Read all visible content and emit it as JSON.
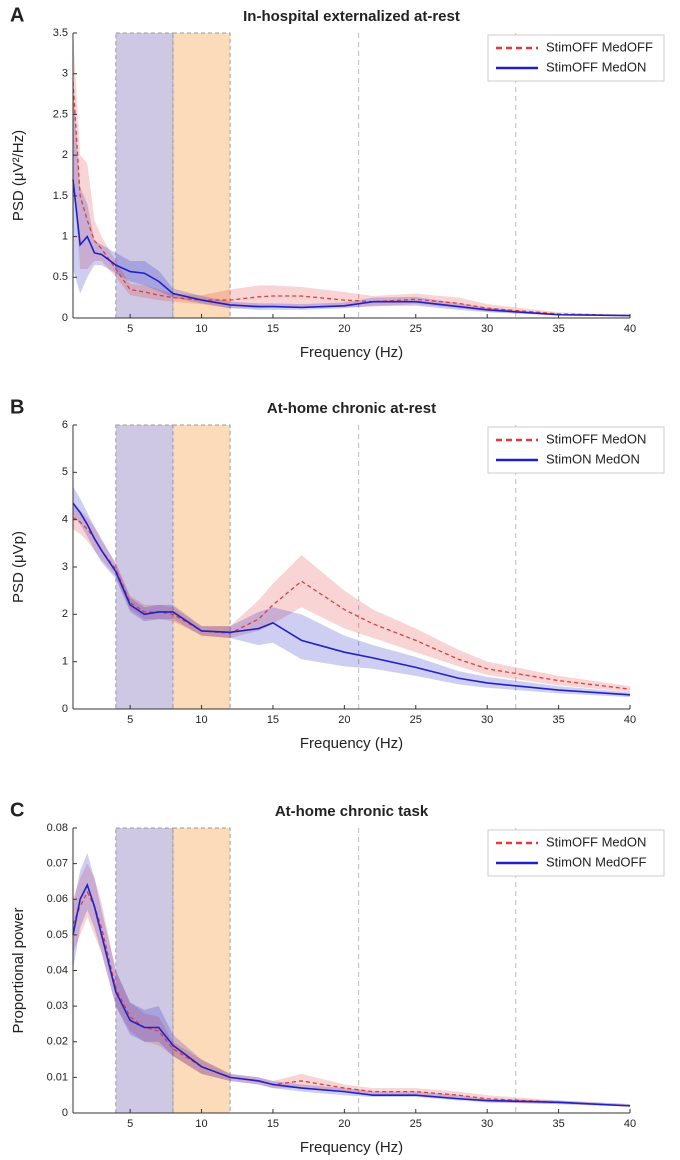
{
  "chart_data": [
    {
      "type": "line",
      "panel_label": "A",
      "title": "In-hospital externalized at-rest",
      "xlabel": "Frequency (Hz)",
      "ylabel": "PSD (μV²/Hz)",
      "x": [
        1,
        1.5,
        2,
        2.5,
        3,
        4,
        5,
        6,
        7,
        8,
        10,
        12,
        14,
        15,
        17,
        20,
        22,
        25,
        28,
        30,
        35,
        40
      ],
      "series": [
        {
          "name": "StimOFF MedOFF",
          "color": "#e03c3c",
          "style": "dashed",
          "values": [
            2.9,
            1.5,
            1.2,
            0.95,
            0.85,
            0.6,
            0.35,
            0.32,
            0.28,
            0.25,
            0.22,
            0.22,
            0.26,
            0.27,
            0.27,
            0.22,
            0.2,
            0.23,
            0.18,
            0.12,
            0.05,
            0.03
          ],
          "lower": [
            1.8,
            0.6,
            0.6,
            0.7,
            0.7,
            0.5,
            0.28,
            0.25,
            0.22,
            0.2,
            0.17,
            0.12,
            0.12,
            0.13,
            0.14,
            0.13,
            0.14,
            0.17,
            0.12,
            0.08,
            0.03,
            0.02
          ],
          "upper": [
            3.5,
            2.0,
            1.9,
            1.2,
            1.0,
            0.7,
            0.42,
            0.4,
            0.35,
            0.3,
            0.28,
            0.35,
            0.4,
            0.4,
            0.38,
            0.32,
            0.27,
            0.3,
            0.25,
            0.17,
            0.07,
            0.04
          ]
        },
        {
          "name": "StimOFF MedON",
          "color": "#2020c8",
          "style": "solid",
          "values": [
            1.7,
            0.9,
            1.0,
            0.8,
            0.78,
            0.65,
            0.57,
            0.55,
            0.45,
            0.3,
            0.22,
            0.16,
            0.14,
            0.14,
            0.13,
            0.15,
            0.2,
            0.2,
            0.14,
            0.1,
            0.04,
            0.03
          ],
          "lower": [
            0.6,
            0.3,
            0.5,
            0.65,
            0.65,
            0.55,
            0.45,
            0.4,
            0.33,
            0.25,
            0.18,
            0.12,
            0.1,
            0.1,
            0.1,
            0.12,
            0.15,
            0.15,
            0.1,
            0.07,
            0.03,
            0.02
          ],
          "upper": [
            2.8,
            1.6,
            1.4,
            0.95,
            0.9,
            0.8,
            0.7,
            0.7,
            0.58,
            0.36,
            0.27,
            0.2,
            0.18,
            0.18,
            0.17,
            0.19,
            0.25,
            0.26,
            0.18,
            0.13,
            0.05,
            0.04
          ]
        }
      ],
      "xlim": [
        1,
        40
      ],
      "ylim": [
        0,
        3.5
      ],
      "xticks": [
        5,
        10,
        15,
        20,
        25,
        30,
        35,
        40
      ],
      "yticks": [
        0,
        0.5,
        1,
        1.5,
        2,
        2.5,
        3,
        3.5
      ],
      "bands": [
        {
          "range": [
            4,
            8
          ],
          "color": "#b3aad6"
        },
        {
          "range": [
            8,
            12
          ],
          "color": "#fbc795"
        }
      ],
      "vlines": [
        21,
        32
      ],
      "legend": "upper right"
    },
    {
      "type": "line",
      "panel_label": "B",
      "title": "At-home chronic at-rest",
      "xlabel": "Frequency (Hz)",
      "ylabel": "PSD (μVp)",
      "x": [
        1,
        1.5,
        2,
        2.5,
        3,
        4,
        5,
        6,
        7,
        8,
        10,
        12,
        14,
        15,
        17,
        20,
        22,
        25,
        28,
        30,
        35,
        40
      ],
      "series": [
        {
          "name": "StimOFF MedON",
          "color": "#e03c3c",
          "style": "dashed",
          "values": [
            4.05,
            3.95,
            3.8,
            3.6,
            3.35,
            2.95,
            2.25,
            2.05,
            2.05,
            2.0,
            1.65,
            1.6,
            1.9,
            2.2,
            2.7,
            2.1,
            1.8,
            1.45,
            1.05,
            0.85,
            0.6,
            0.42
          ],
          "lower": [
            3.8,
            3.7,
            3.55,
            3.35,
            3.15,
            2.8,
            2.1,
            1.9,
            1.9,
            1.85,
            1.55,
            1.5,
            1.65,
            1.8,
            2.15,
            1.7,
            1.5,
            1.2,
            0.9,
            0.72,
            0.5,
            0.36
          ],
          "upper": [
            4.3,
            4.2,
            4.05,
            3.85,
            3.55,
            3.1,
            2.4,
            2.2,
            2.2,
            2.15,
            1.75,
            1.75,
            2.3,
            2.65,
            3.25,
            2.5,
            2.1,
            1.7,
            1.25,
            1.0,
            0.7,
            0.48
          ]
        },
        {
          "name": "StimON MedON",
          "color": "#2020c8",
          "style": "solid",
          "values": [
            4.35,
            4.15,
            3.9,
            3.6,
            3.35,
            2.9,
            2.2,
            2.0,
            2.05,
            2.05,
            1.65,
            1.62,
            1.7,
            1.82,
            1.45,
            1.2,
            1.08,
            0.88,
            0.65,
            0.55,
            0.4,
            0.3
          ],
          "lower": [
            4.1,
            3.9,
            3.65,
            3.35,
            3.1,
            2.75,
            2.05,
            1.85,
            1.9,
            1.9,
            1.55,
            1.5,
            1.35,
            1.4,
            1.05,
            0.9,
            0.85,
            0.7,
            0.52,
            0.45,
            0.33,
            0.25
          ],
          "upper": [
            4.7,
            4.45,
            4.15,
            3.85,
            3.6,
            3.05,
            2.35,
            2.15,
            2.2,
            2.2,
            1.75,
            1.75,
            2.05,
            2.15,
            2.0,
            1.55,
            1.35,
            1.1,
            0.8,
            0.68,
            0.48,
            0.35
          ]
        }
      ],
      "xlim": [
        1,
        40
      ],
      "ylim": [
        0,
        6
      ],
      "xticks": [
        5,
        10,
        15,
        20,
        25,
        30,
        35,
        40
      ],
      "yticks": [
        0,
        1,
        2,
        3,
        4,
        5,
        6
      ],
      "bands": [
        {
          "range": [
            4,
            8
          ],
          "color": "#b3aad6"
        },
        {
          "range": [
            8,
            12
          ],
          "color": "#fbc795"
        }
      ],
      "vlines": [
        21,
        32
      ],
      "legend": "upper right"
    },
    {
      "type": "line",
      "panel_label": "C",
      "title": "At-home chronic task",
      "xlabel": "Frequency (Hz)",
      "ylabel": "Proportional power",
      "x": [
        1,
        1.5,
        2,
        2.5,
        3,
        4,
        5,
        6,
        7,
        8,
        10,
        12,
        14,
        15,
        17,
        20,
        22,
        25,
        28,
        30,
        35,
        40
      ],
      "series": [
        {
          "name": "StimOFF MedON",
          "color": "#e03c3c",
          "style": "dashed",
          "values": [
            0.053,
            0.058,
            0.062,
            0.058,
            0.052,
            0.035,
            0.027,
            0.024,
            0.023,
            0.018,
            0.013,
            0.01,
            0.009,
            0.008,
            0.009,
            0.007,
            0.006,
            0.006,
            0.005,
            0.004,
            0.003,
            0.002
          ],
          "lower": [
            0.045,
            0.05,
            0.055,
            0.05,
            0.045,
            0.03,
            0.023,
            0.02,
            0.019,
            0.016,
            0.011,
            0.009,
            0.008,
            0.007,
            0.007,
            0.006,
            0.005,
            0.005,
            0.004,
            0.003,
            0.0025,
            0.0018
          ],
          "upper": [
            0.06,
            0.066,
            0.07,
            0.066,
            0.059,
            0.04,
            0.031,
            0.028,
            0.027,
            0.02,
            0.015,
            0.011,
            0.01,
            0.009,
            0.011,
            0.008,
            0.007,
            0.007,
            0.006,
            0.005,
            0.0035,
            0.0025
          ]
        },
        {
          "name": "StimON MedOFF",
          "color": "#2020c8",
          "style": "solid",
          "values": [
            0.05,
            0.06,
            0.064,
            0.058,
            0.05,
            0.034,
            0.026,
            0.024,
            0.024,
            0.019,
            0.013,
            0.01,
            0.009,
            0.008,
            0.007,
            0.006,
            0.005,
            0.005,
            0.004,
            0.0035,
            0.003,
            0.002
          ],
          "lower": [
            0.04,
            0.052,
            0.057,
            0.052,
            0.045,
            0.03,
            0.022,
            0.02,
            0.02,
            0.016,
            0.011,
            0.009,
            0.008,
            0.007,
            0.006,
            0.005,
            0.0045,
            0.0045,
            0.0035,
            0.003,
            0.0025,
            0.0018
          ],
          "upper": [
            0.058,
            0.068,
            0.073,
            0.066,
            0.057,
            0.04,
            0.031,
            0.029,
            0.03,
            0.022,
            0.015,
            0.011,
            0.01,
            0.009,
            0.008,
            0.007,
            0.006,
            0.006,
            0.005,
            0.004,
            0.0035,
            0.0025
          ]
        }
      ],
      "xlim": [
        1,
        40
      ],
      "ylim": [
        0,
        0.08
      ],
      "xticks": [
        5,
        10,
        15,
        20,
        25,
        30,
        35,
        40
      ],
      "yticks": [
        0,
        0.01,
        0.02,
        0.03,
        0.04,
        0.05,
        0.06,
        0.07,
        0.08
      ],
      "bands": [
        {
          "range": [
            4,
            8
          ],
          "color": "#b3aad6"
        },
        {
          "range": [
            8,
            12
          ],
          "color": "#fbc795"
        }
      ],
      "vlines": [
        21,
        32
      ],
      "legend": "upper right"
    }
  ]
}
